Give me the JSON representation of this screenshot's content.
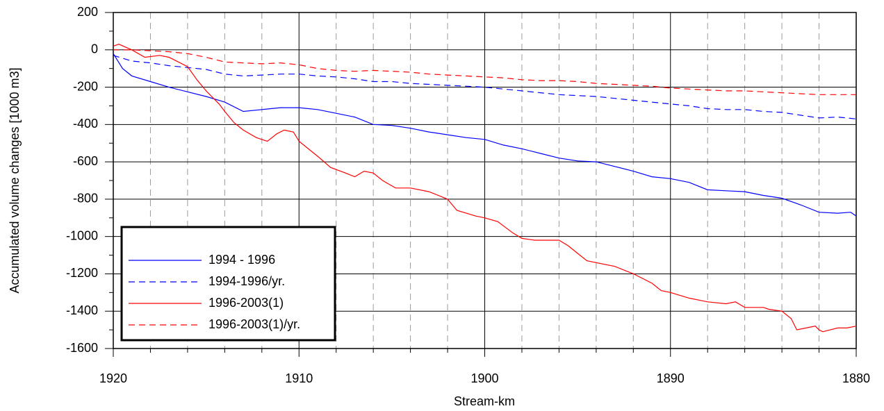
{
  "chart_data": {
    "type": "line",
    "x_label": "Stream-km",
    "y_label": "Accumulated volume changes [1000 m3]",
    "xlim": [
      1920,
      1880
    ],
    "xticks": [
      1920,
      1910,
      1900,
      1890,
      1880
    ],
    "x_minor_ticks": [
      1918,
      1916,
      1914,
      1912,
      1908,
      1906,
      1904,
      1902,
      1898,
      1896,
      1894,
      1892,
      1888,
      1886,
      1884,
      1882
    ],
    "ylim": [
      -1600,
      200
    ],
    "yticks": [
      -1600,
      -1400,
      -1200,
      -1000,
      -800,
      -600,
      -400,
      -200,
      0,
      200
    ],
    "y_minor_ticks": [
      -1500,
      -1300,
      -1100,
      -900,
      -700,
      -500,
      -300,
      -100,
      100
    ],
    "grid": true,
    "legend": "lower left",
    "series": [
      {
        "name": "1994 - 1996",
        "color": "#0000ff",
        "dash": "solid",
        "x": [
          1920,
          1919.5,
          1919,
          1918,
          1917,
          1916,
          1915,
          1914,
          1913,
          1912,
          1911,
          1910,
          1909,
          1908,
          1907,
          1906,
          1905,
          1904,
          1903,
          1902,
          1901,
          1900,
          1899,
          1898,
          1897,
          1896,
          1895,
          1894,
          1893,
          1892,
          1891,
          1890,
          1889,
          1888,
          1887,
          1886,
          1885,
          1884,
          1883,
          1882,
          1881,
          1880.3,
          1880
        ],
        "values": [
          -20,
          -100,
          -140,
          -170,
          -200,
          -225,
          -250,
          -280,
          -330,
          -320,
          -310,
          -310,
          -320,
          -340,
          -360,
          -400,
          -405,
          -420,
          -440,
          -455,
          -470,
          -480,
          -510,
          -530,
          -555,
          -580,
          -595,
          -600,
          -625,
          -650,
          -680,
          -690,
          -710,
          -750,
          -755,
          -760,
          -780,
          -795,
          -830,
          -870,
          -875,
          -870,
          -890
        ]
      },
      {
        "name": "1994-1996/yr.",
        "color": "#0000ff",
        "dash": "dashed",
        "x": [
          1920,
          1919,
          1918,
          1917,
          1916,
          1915,
          1914,
          1913,
          1912,
          1911,
          1910,
          1909,
          1908,
          1907,
          1906,
          1905,
          1904,
          1903,
          1902,
          1901,
          1900,
          1899,
          1898,
          1897,
          1896,
          1895,
          1894,
          1893,
          1892,
          1891,
          1890,
          1889,
          1888,
          1887,
          1886,
          1885,
          1884,
          1883,
          1882,
          1881,
          1880
        ],
        "values": [
          -30,
          -60,
          -70,
          -85,
          -95,
          -105,
          -130,
          -140,
          -135,
          -130,
          -130,
          -140,
          -145,
          -155,
          -170,
          -170,
          -180,
          -185,
          -190,
          -195,
          -200,
          -210,
          -220,
          -230,
          -240,
          -245,
          -250,
          -260,
          -270,
          -280,
          -290,
          -300,
          -315,
          -320,
          -320,
          -330,
          -335,
          -350,
          -365,
          -360,
          -370
        ]
      },
      {
        "name": "1996-2003(1)",
        "color": "#ff0000",
        "dash": "solid",
        "x": [
          1920,
          1919.7,
          1919,
          1918.3,
          1917.5,
          1917,
          1916,
          1915.5,
          1915,
          1914.3,
          1914,
          1913.5,
          1913,
          1912.3,
          1911.7,
          1911.2,
          1910.8,
          1910.3,
          1910,
          1909,
          1908.3,
          1907.5,
          1907,
          1906.5,
          1906,
          1905.5,
          1904.8,
          1904,
          1903,
          1902,
          1901.5,
          1900.5,
          1900,
          1899.3,
          1898.5,
          1898,
          1897.3,
          1896,
          1895.5,
          1895,
          1894.5,
          1894,
          1893,
          1892,
          1891,
          1890.5,
          1890,
          1889,
          1888,
          1887,
          1886.5,
          1886,
          1885,
          1884.7,
          1884,
          1883.5,
          1883.2,
          1882.7,
          1882.2,
          1882,
          1881.8,
          1881,
          1880.5,
          1880
        ],
        "values": [
          20,
          30,
          0,
          -40,
          -30,
          -40,
          -90,
          -160,
          -220,
          -290,
          -330,
          -390,
          -430,
          -470,
          -490,
          -450,
          -430,
          -440,
          -490,
          -570,
          -630,
          -660,
          -680,
          -650,
          -660,
          -700,
          -740,
          -740,
          -760,
          -800,
          -860,
          -890,
          -900,
          -920,
          -980,
          -1010,
          -1020,
          -1020,
          -1050,
          -1090,
          -1130,
          -1140,
          -1160,
          -1200,
          -1250,
          -1290,
          -1300,
          -1330,
          -1350,
          -1360,
          -1350,
          -1380,
          -1380,
          -1390,
          -1400,
          -1440,
          -1500,
          -1490,
          -1480,
          -1500,
          -1510,
          -1490,
          -1490,
          -1480
        ]
      },
      {
        "name": "1996-2003(1)/yr.",
        "color": "#ff0000",
        "dash": "dashed",
        "x": [
          1920,
          1919,
          1918,
          1917,
          1916,
          1915,
          1914,
          1913,
          1912,
          1911,
          1910,
          1909,
          1908,
          1907,
          1906,
          1905,
          1904,
          1903,
          1902,
          1901,
          1900,
          1899,
          1898,
          1897,
          1896,
          1895,
          1894,
          1893,
          1892,
          1891,
          1890,
          1889,
          1888,
          1887,
          1886,
          1885,
          1884,
          1883,
          1882,
          1881,
          1880
        ],
        "values": [
          0,
          0,
          -5,
          -10,
          -20,
          -40,
          -65,
          -70,
          -75,
          -70,
          -80,
          -100,
          -110,
          -115,
          -110,
          -115,
          -120,
          -130,
          -135,
          -140,
          -145,
          -150,
          -160,
          -165,
          -165,
          -170,
          -180,
          -185,
          -190,
          -195,
          -205,
          -210,
          -215,
          -220,
          -220,
          -225,
          -230,
          -235,
          -240,
          -240,
          -240
        ]
      }
    ]
  }
}
